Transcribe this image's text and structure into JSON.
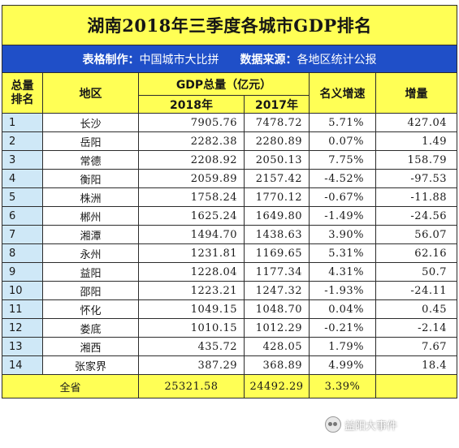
{
  "title": "湖南2018年三季度各城市GDP排名",
  "info": {
    "maker_label": "表格制作：",
    "maker_value": "中国城市大比拼",
    "source_label": "数据来源：",
    "source_value": "各地区统计公报"
  },
  "headers": {
    "rank_line1": "总量",
    "rank_line2": "排名",
    "region": "地区",
    "gdp_total": "GDP总量（亿元）",
    "year_2018": "2018年",
    "year_2017": "2017年",
    "nominal_growth": "名义增速",
    "increase": "增量"
  },
  "rows": [
    {
      "rank": "1",
      "city": "长沙",
      "gdp2018": "7905.76",
      "gdp2017": "7478.72",
      "growth": "5.71%",
      "increase": "427.04"
    },
    {
      "rank": "2",
      "city": "岳阳",
      "gdp2018": "2282.38",
      "gdp2017": "2280.89",
      "growth": "0.07%",
      "increase": "1.49"
    },
    {
      "rank": "3",
      "city": "常德",
      "gdp2018": "2208.92",
      "gdp2017": "2050.13",
      "growth": "7.75%",
      "increase": "158.79"
    },
    {
      "rank": "4",
      "city": "衡阳",
      "gdp2018": "2059.89",
      "gdp2017": "2157.42",
      "growth": "-4.52%",
      "increase": "-97.53"
    },
    {
      "rank": "5",
      "city": "株洲",
      "gdp2018": "1758.24",
      "gdp2017": "1770.12",
      "growth": "-0.67%",
      "increase": "-11.88"
    },
    {
      "rank": "6",
      "city": "郴州",
      "gdp2018": "1625.24",
      "gdp2017": "1649.80",
      "growth": "-1.49%",
      "increase": "-24.56"
    },
    {
      "rank": "7",
      "city": "湘潭",
      "gdp2018": "1494.70",
      "gdp2017": "1438.63",
      "growth": "3.90%",
      "increase": "56.07"
    },
    {
      "rank": "8",
      "city": "永州",
      "gdp2018": "1231.81",
      "gdp2017": "1169.65",
      "growth": "5.31%",
      "increase": "62.16"
    },
    {
      "rank": "9",
      "city": "益阳",
      "gdp2018": "1228.04",
      "gdp2017": "1177.34",
      "growth": "4.31%",
      "increase": "50.7"
    },
    {
      "rank": "10",
      "city": "邵阳",
      "gdp2018": "1223.21",
      "gdp2017": "1247.32",
      "growth": "-1.93%",
      "increase": "-24.11"
    },
    {
      "rank": "11",
      "city": "怀化",
      "gdp2018": "1049.15",
      "gdp2017": "1048.70",
      "growth": "0.04%",
      "increase": "0.45"
    },
    {
      "rank": "12",
      "city": "娄底",
      "gdp2018": "1010.15",
      "gdp2017": "1012.29",
      "growth": "-0.21%",
      "increase": "-2.14"
    },
    {
      "rank": "13",
      "city": "湘西",
      "gdp2018": "435.72",
      "gdp2017": "428.05",
      "growth": "1.79%",
      "increase": "7.67"
    },
    {
      "rank": "14",
      "city": "张家界",
      "gdp2018": "387.29",
      "gdp2017": "368.89",
      "growth": "4.99%",
      "increase": "18.4"
    }
  ],
  "total": {
    "label": "全省",
    "gdp2018": "25321.58",
    "gdp2017": "24492.29",
    "growth": "3.39%"
  },
  "watermark": {
    "icon": "wechat-icon",
    "text": "益阳大事件"
  }
}
